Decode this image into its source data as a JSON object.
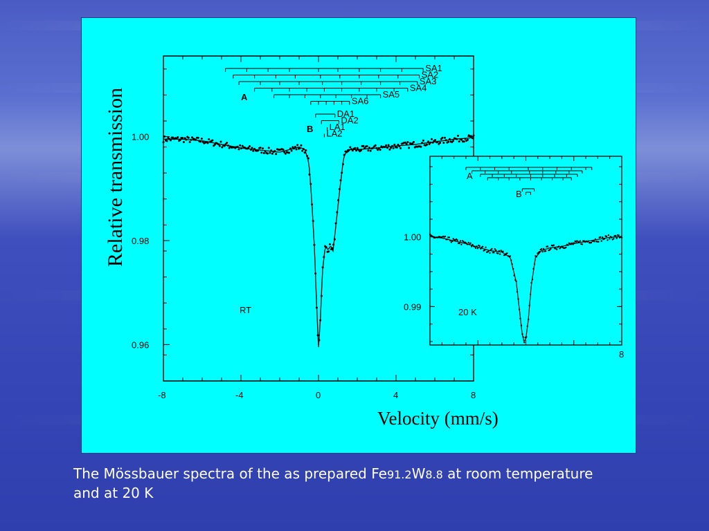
{
  "caption": {
    "part1": "The Mössbauer spectra of the as prepared Fe",
    "sub1": "91.2",
    "part2": "W",
    "sub2": "8.8",
    "part3": " at room temperature",
    "line2": " and at 20 K"
  },
  "chart_data": [
    {
      "type": "scatter",
      "panel": "main",
      "annotation": "RT",
      "xlabel": "Velocity (mm/s)",
      "ylabel": "Relative  transmission",
      "xlim": [
        -8,
        8
      ],
      "ylim": [
        0.953,
        1.0155
      ],
      "xticks": [
        "-8",
        "-4",
        "0",
        "4",
        "8"
      ],
      "yticks": [
        "0.96",
        "0.98",
        "1.00"
      ],
      "series": [
        {
          "points": [
            [
              -8.0,
              0.9995
            ],
            [
              -7.0,
              0.9995
            ],
            [
              -6.0,
              0.9992
            ],
            [
              -5.0,
              0.9985
            ],
            [
              -4.0,
              0.9978
            ],
            [
              -3.0,
              0.9974
            ],
            [
              -2.0,
              0.997
            ],
            [
              -1.5,
              0.9975
            ],
            [
              -1.0,
              0.998
            ],
            [
              -0.7,
              0.9975
            ],
            [
              -0.5,
              0.995
            ],
            [
              -0.35,
              0.988
            ],
            [
              -0.2,
              0.978
            ],
            [
              -0.1,
              0.968
            ],
            [
              0.0,
              0.9595
            ],
            [
              0.1,
              0.965
            ],
            [
              0.2,
              0.974
            ],
            [
              0.35,
              0.979
            ],
            [
              0.5,
              0.9782
            ],
            [
              0.62,
              0.979
            ],
            [
              0.75,
              0.978
            ],
            [
              0.9,
              0.983
            ],
            [
              1.1,
              0.99
            ],
            [
              1.3,
              0.996
            ],
            [
              1.5,
              0.9975
            ],
            [
              2.0,
              0.9975
            ],
            [
              3.0,
              0.9978
            ],
            [
              4.0,
              0.9982
            ],
            [
              5.0,
              0.9985
            ],
            [
              6.0,
              0.999
            ],
            [
              7.0,
              0.9995
            ],
            [
              8.0,
              0.9998
            ]
          ]
        }
      ],
      "fit_visible": true,
      "bracket_groups": [
        {
          "label": "A",
          "subspectra": [
            {
              "name": "SA1",
              "lines": [
                -4.8,
                -3.7,
                -2.6,
                -1.5,
                0.0,
                1.0,
                2.1,
                3.2,
                4.3,
                5.4
              ]
            },
            {
              "name": "SA2",
              "lines": [
                -4.4,
                -3.3,
                -2.2,
                -1.2,
                0.1,
                1.1,
                2.1,
                3.1,
                4.1,
                5.2
              ]
            },
            {
              "name": "SA3",
              "lines": [
                -4.1,
                -3.0,
                -2.0,
                -1.0,
                0.2,
                1.2,
                2.2,
                3.2,
                4.2,
                5.1
              ]
            },
            {
              "name": "SA4",
              "lines": [
                -3.3,
                -2.4,
                -1.5,
                -0.6,
                0.3,
                1.2,
                2.1,
                3.0,
                3.9,
                4.6
              ]
            },
            {
              "name": "SA5",
              "lines": [
                -2.3,
                -1.5,
                -0.7,
                0.1,
                0.9,
                1.7,
                2.5,
                3.2
              ]
            },
            {
              "name": "SA6",
              "lines": [
                -0.4,
                0.0,
                0.4,
                0.8,
                1.2,
                1.6
              ]
            }
          ]
        },
        {
          "label": "B",
          "subspectra": [
            {
              "name": "DA1",
              "lines": [
                -0.15,
                0.85
              ]
            },
            {
              "name": "DA2",
              "lines": [
                0.15,
                1.05
              ]
            },
            {
              "name": "LA1",
              "lines": [
                0.45
              ]
            },
            {
              "name": "LA2",
              "lines": [
                0.3
              ]
            }
          ]
        }
      ]
    },
    {
      "type": "scatter",
      "panel": "inset",
      "annotation": "20 K",
      "xlim": [
        -8,
        8
      ],
      "ylim": [
        0.9845,
        1.0115
      ],
      "xticks": [
        "8"
      ],
      "yticks": [
        "0.99",
        "1.00"
      ],
      "series": [
        {
          "points": [
            [
              -8.0,
              1.0
            ],
            [
              -7.0,
              0.9998
            ],
            [
              -6.0,
              0.9994
            ],
            [
              -5.0,
              0.999
            ],
            [
              -4.0,
              0.9985
            ],
            [
              -3.0,
              0.998
            ],
            [
              -2.0,
              0.9978
            ],
            [
              -1.3,
              0.997
            ],
            [
              -0.8,
              0.9935
            ],
            [
              -0.5,
              0.989
            ],
            [
              -0.3,
              0.986
            ],
            [
              -0.15,
              0.985
            ],
            [
              0.0,
              0.9854
            ],
            [
              0.2,
              0.988
            ],
            [
              0.45,
              0.993
            ],
            [
              0.8,
              0.997
            ],
            [
              1.3,
              0.998
            ],
            [
              2.0,
              0.9984
            ],
            [
              3.0,
              0.9986
            ],
            [
              4.0,
              0.999
            ],
            [
              5.0,
              0.9993
            ],
            [
              6.0,
              0.9996
            ],
            [
              7.0,
              0.9999
            ],
            [
              8.0,
              1.0
            ]
          ]
        }
      ],
      "fit_visible": true,
      "bracket_groups": [
        {
          "label": "A",
          "subspectra": [
            {
              "lines": [
                -5.0,
                -3.8,
                -2.6,
                -1.4,
                0.2,
                1.4,
                2.6,
                3.8,
                5.0,
                5.5
              ]
            },
            {
              "lines": [
                -4.5,
                -3.4,
                -2.3,
                -1.2,
                0.3,
                1.4,
                2.5,
                3.6,
                4.7
              ]
            },
            {
              "lines": [
                -3.8,
                -2.8,
                -1.8,
                -0.8,
                0.4,
                1.4,
                2.4,
                3.4,
                4.3
              ]
            },
            {
              "lines": [
                -3.2,
                -2.3,
                -1.4,
                -0.5,
                0.4,
                1.3,
                2.2,
                3.1,
                3.8
              ]
            }
          ]
        },
        {
          "label": "B",
          "subspectra": [
            {
              "lines": [
                -0.3,
                0.7
              ]
            },
            {
              "lines": [
                0.0,
                0.4
              ]
            }
          ]
        }
      ]
    }
  ]
}
